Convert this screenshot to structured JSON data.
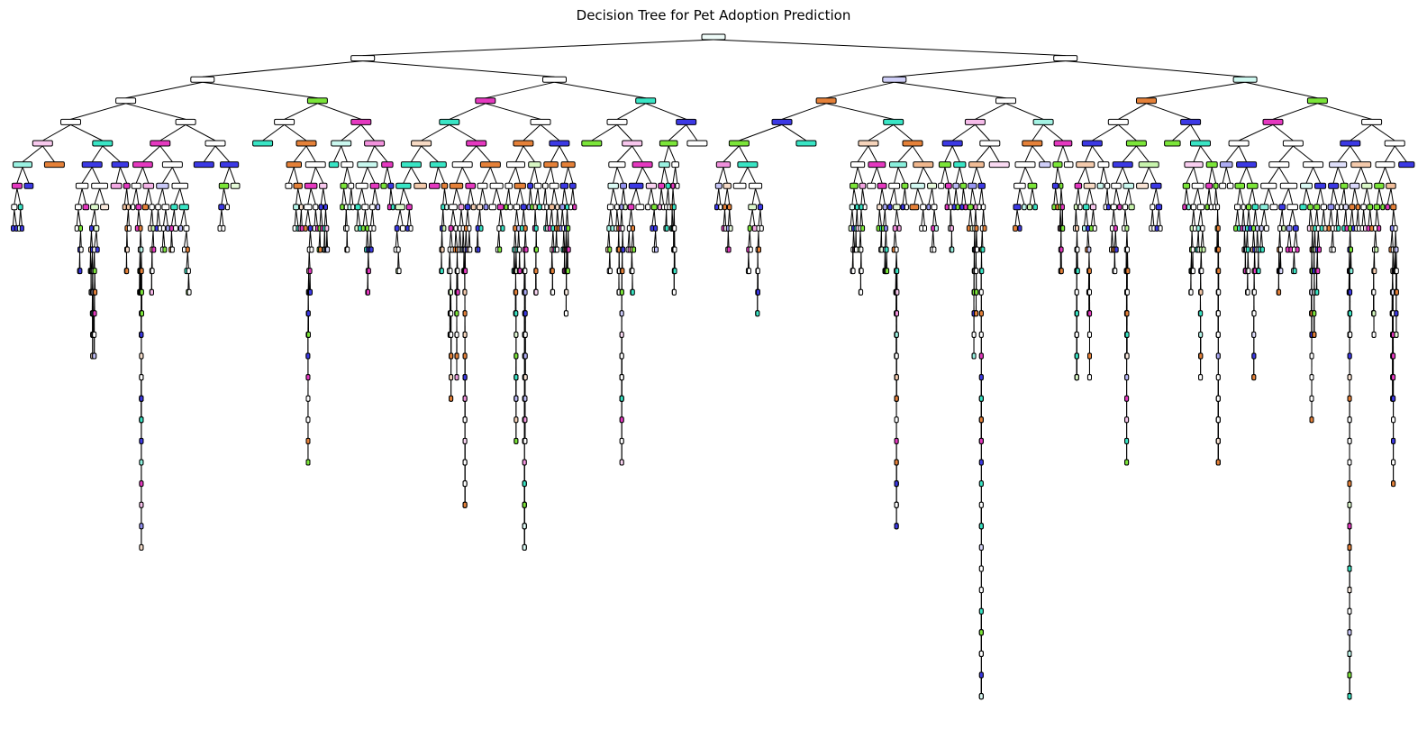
{
  "title": "Decision Tree for Pet Adoption Prediction",
  "tree": {
    "levels": 32,
    "class_colors": [
      "#e58139",
      "#7be539",
      "#39e5c5",
      "#3c39e5",
      "#e539c0"
    ]
  }
}
